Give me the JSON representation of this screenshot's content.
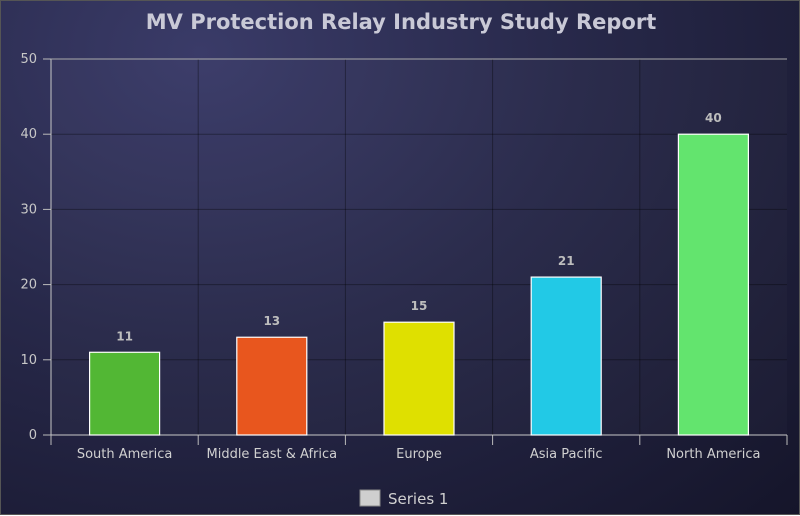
{
  "chart_data": {
    "type": "bar",
    "title": "MV Protection Relay Industry Study Report",
    "categories": [
      "South America",
      "Middle East & Africa",
      "Europe",
      "Asia Pacific",
      "North America"
    ],
    "series": [
      {
        "name": "Series 1",
        "values": [
          11,
          13,
          15,
          21,
          40
        ],
        "colors": [
          "#52b734",
          "#e8561e",
          "#dfe000",
          "#22c9e6",
          "#63e46e"
        ]
      }
    ],
    "xlabel": "",
    "ylabel": "",
    "ylim": [
      0,
      50
    ],
    "yticks": [
      0,
      10,
      20,
      30,
      40,
      50
    ],
    "grid": true,
    "legend": "bottom-center",
    "legend_color": "#cfcfcf"
  }
}
